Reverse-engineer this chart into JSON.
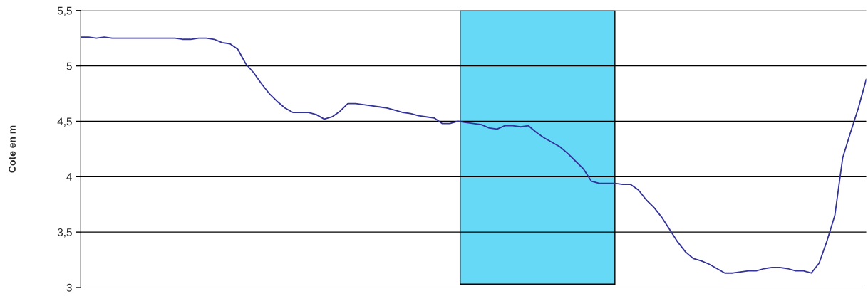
{
  "chart_data": {
    "type": "line",
    "ylabel": "Cote en m",
    "categories": [
      null,
      null,
      null,
      null,
      null,
      null,
      null,
      null,
      null,
      null,
      null,
      null,
      null,
      null,
      null,
      null,
      null,
      null,
      null,
      null,
      null,
      null,
      null,
      null,
      null,
      null,
      null,
      null,
      null,
      null,
      null,
      null,
      null,
      null,
      null,
      null,
      null,
      null,
      null,
      null,
      null,
      null,
      null,
      null,
      null,
      null,
      null,
      null,
      null,
      null,
      null,
      null,
      null,
      null,
      null,
      null,
      null,
      null,
      null,
      null,
      null,
      null,
      null,
      null,
      null,
      null,
      null,
      null,
      null,
      null,
      null,
      null,
      null,
      null,
      null,
      null,
      null,
      null,
      null,
      null,
      null,
      null,
      null,
      null,
      null,
      null,
      null,
      null,
      null,
      null,
      null,
      null,
      null,
      null,
      null,
      null,
      null,
      null,
      null,
      null,
      null
    ],
    "series": [
      {
        "color": "#333399",
        "values": [
          5.26,
          5.26,
          5.25,
          5.26,
          5.25,
          5.25,
          5.25,
          5.25,
          5.25,
          5.25,
          5.25,
          5.25,
          5.25,
          5.24,
          5.24,
          5.25,
          5.25,
          5.24,
          5.21,
          5.2,
          5.15,
          5.02,
          4.94,
          4.84,
          4.75,
          4.68,
          4.62,
          4.58,
          4.58,
          4.58,
          4.56,
          4.52,
          4.54,
          4.59,
          4.66,
          4.66,
          4.65,
          4.64,
          4.63,
          4.62,
          4.6,
          4.58,
          4.57,
          4.55,
          4.54,
          4.53,
          4.48,
          4.48,
          4.5,
          4.49,
          4.48,
          4.47,
          4.44,
          4.43,
          4.46,
          4.46,
          4.45,
          4.46,
          4.4,
          4.35,
          4.31,
          4.27,
          4.21,
          4.14,
          4.07,
          3.96,
          3.94,
          3.94,
          3.94,
          3.93,
          3.93,
          3.88,
          3.79,
          3.72,
          3.63,
          3.52,
          3.41,
          3.32,
          3.26,
          3.24,
          3.21,
          3.17,
          3.13,
          3.13,
          3.14,
          3.15,
          3.15,
          3.17,
          3.18,
          3.18,
          3.17,
          3.15,
          3.15,
          3.13,
          3.22,
          3.42,
          3.65,
          4.17,
          4.4,
          4.62,
          4.88
        ]
      }
    ],
    "ylim": [
      3,
      5.5
    ],
    "yticks": [
      {
        "value": 3,
        "label": "3"
      },
      {
        "value": 3.5,
        "label": "3,5"
      },
      {
        "value": 4,
        "label": "4"
      },
      {
        "value": 4.5,
        "label": "4,5"
      },
      {
        "value": 5,
        "label": "5"
      },
      {
        "value": 5.5,
        "label": "5,5"
      }
    ],
    "grid": "y",
    "tick_labels": "y",
    "legend": false,
    "line_style": "solid",
    "marker": "none"
  }
}
